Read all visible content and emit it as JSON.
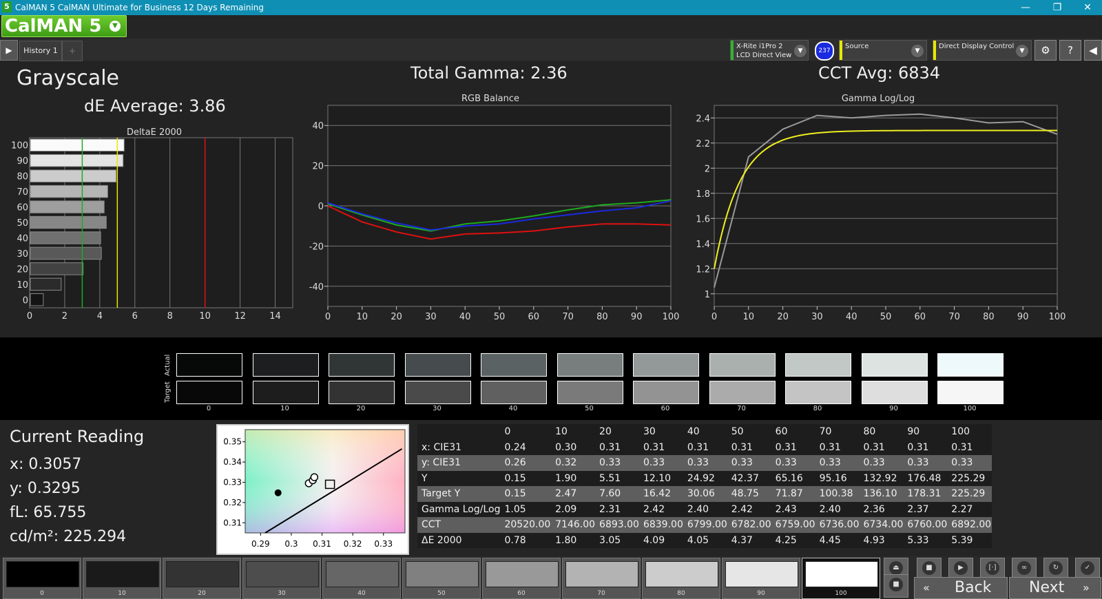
{
  "window": {
    "app_icon": "5",
    "title": "CalMAN 5 CalMAN Ultimate for Business 12 Days Remaining",
    "minimize_icon": "minimize-icon",
    "maximize_icon": "maximize-icon",
    "close_icon": "close-icon"
  },
  "logo": {
    "text": "CalMAN 5",
    "arrow": "chevron-down-icon"
  },
  "tabs": {
    "active": "History 1",
    "add": "+"
  },
  "devices": {
    "meter": {
      "line1": "X-Rite i1Pro 2",
      "line2": "LCD Direct View",
      "badge": "237",
      "color": "#2fb52f"
    },
    "source": {
      "label": "Source",
      "color": "#e8e800"
    },
    "display": {
      "label": "Direct Display Control",
      "color": "#e8e800"
    }
  },
  "header": {
    "page_title": "Grayscale",
    "de_average": "dE Average: 3.86",
    "total_gamma": "Total Gamma: 2.36",
    "cct_avg": "CCT Avg: 6834"
  },
  "chart_data": [
    {
      "type": "bar",
      "title": "DeltaE 2000",
      "orientation": "horizontal",
      "categories": [
        "100",
        "90",
        "80",
        "70",
        "60",
        "50",
        "40",
        "30",
        "20",
        "10",
        "0"
      ],
      "values": [
        5.39,
        5.33,
        4.93,
        4.45,
        4.25,
        4.37,
        4.05,
        4.09,
        3.05,
        1.8,
        0.78
      ],
      "xlim": [
        0,
        15
      ],
      "xticks": [
        "0",
        "2",
        "4",
        "6",
        "8",
        "10",
        "12",
        "14"
      ],
      "reference_lines": [
        {
          "x": 3,
          "color": "#1faa1f"
        },
        {
          "x": 5,
          "color": "#e8e800"
        },
        {
          "x": 10,
          "color": "#e01010"
        }
      ]
    },
    {
      "type": "line",
      "title": "RGB Balance",
      "x": [
        0,
        10,
        20,
        30,
        40,
        50,
        60,
        70,
        80,
        90,
        100
      ],
      "ylim": [
        -50,
        50
      ],
      "yticks": [
        "40",
        "20",
        "0",
        "-20",
        "-40"
      ],
      "xticks": [
        "0",
        "10",
        "20",
        "30",
        "40",
        "50",
        "60",
        "70",
        "80",
        "90",
        "100"
      ],
      "series": [
        {
          "color": "#e01010",
          "values": [
            0,
            -8,
            -13,
            -16.5,
            -14,
            -13.5,
            -12.5,
            -10.5,
            -9,
            -9,
            -9.5
          ]
        },
        {
          "color": "#1faa1f",
          "values": [
            1,
            -4.5,
            -9.5,
            -12.5,
            -9,
            -7.5,
            -5,
            -2,
            0.5,
            1.5,
            3
          ]
        },
        {
          "color": "#1a2ae0",
          "values": [
            1.5,
            -4,
            -8.5,
            -12,
            -10,
            -9,
            -6.5,
            -4.5,
            -2.5,
            -1,
            2.5
          ]
        }
      ]
    },
    {
      "type": "line",
      "title": "Gamma Log/Log",
      "x": [
        0,
        10,
        20,
        30,
        40,
        50,
        60,
        70,
        80,
        90,
        100
      ],
      "ylim": [
        0.9,
        2.5
      ],
      "yticks": [
        "2.4",
        "2.2",
        "2",
        "1.8",
        "1.6",
        "1.4",
        "1.2",
        "1"
      ],
      "xticks": [
        "0",
        "10",
        "20",
        "30",
        "40",
        "50",
        "60",
        "70",
        "80",
        "90",
        "100"
      ],
      "series": [
        {
          "color": "#9a9a9a",
          "values": [
            1.05,
            2.09,
            2.31,
            2.42,
            2.4,
            2.42,
            2.43,
            2.4,
            2.36,
            2.37,
            2.27
          ]
        },
        {
          "color": "#f0f020",
          "target_gamma": 2.3
        }
      ]
    },
    {
      "type": "scatter",
      "title": "",
      "xlim": [
        0.285,
        0.337
      ],
      "ylim": [
        0.305,
        0.356
      ],
      "xticks": [
        "0.29",
        "0.3",
        "0.31",
        "0.32",
        "0.33"
      ],
      "yticks": [
        "0.35",
        "0.34",
        "0.33",
        "0.32",
        "0.31"
      ],
      "points": [
        {
          "x": 0.2957,
          "y": 0.3248,
          "style": "filled"
        },
        {
          "x": 0.3057,
          "y": 0.3295,
          "style": "ring"
        },
        {
          "x": 0.307,
          "y": 0.331,
          "style": "ring"
        },
        {
          "x": 0.3075,
          "y": 0.3325,
          "style": "ring"
        }
      ],
      "target": {
        "x": 0.3127,
        "y": 0.329
      }
    }
  ],
  "swatches": {
    "actual_label": "Actual",
    "target_label": "Target",
    "steps": [
      "0",
      "10",
      "20",
      "30",
      "40",
      "50",
      "60",
      "70",
      "80",
      "90",
      "100"
    ],
    "actual_colors": [
      "#070808",
      "#1c1e1f",
      "#303536",
      "#464c4d",
      "#5b6263",
      "#787d7e",
      "#939998",
      "#a9b0ae",
      "#c2c8c6",
      "#dde3e1",
      "#eef9fb"
    ],
    "target_colors": [
      "#080808",
      "#1d1d1d",
      "#333333",
      "#4a4a4a",
      "#606060",
      "#7a7a7a",
      "#939393",
      "#ababab",
      "#c4c4c4",
      "#dedede",
      "#f6f6f6"
    ]
  },
  "current_reading": {
    "title": "Current Reading",
    "x": "x: 0.3057",
    "y": "y: 0.3295",
    "fl": "fL: 65.755",
    "cdm2": "cd/m²: 225.294"
  },
  "table": {
    "headers": [
      "",
      "0",
      "10",
      "20",
      "30",
      "40",
      "50",
      "60",
      "70",
      "80",
      "90",
      "100"
    ],
    "rows": [
      [
        "x: CIE31",
        "0.24",
        "0.30",
        "0.31",
        "0.31",
        "0.31",
        "0.31",
        "0.31",
        "0.31",
        "0.31",
        "0.31",
        "0.31"
      ],
      [
        "y: CIE31",
        "0.26",
        "0.32",
        "0.33",
        "0.33",
        "0.33",
        "0.33",
        "0.33",
        "0.33",
        "0.33",
        "0.33",
        "0.33"
      ],
      [
        "Y",
        "0.15",
        "1.90",
        "5.51",
        "12.10",
        "24.92",
        "42.37",
        "65.16",
        "95.16",
        "132.92",
        "176.48",
        "225.29"
      ],
      [
        "Target Y",
        "0.15",
        "2.47",
        "7.60",
        "16.42",
        "30.06",
        "48.75",
        "71.87",
        "100.38",
        "136.10",
        "178.31",
        "225.29"
      ],
      [
        "Gamma Log/Log",
        "1.05",
        "2.09",
        "2.31",
        "2.42",
        "2.40",
        "2.42",
        "2.43",
        "2.40",
        "2.36",
        "2.37",
        "2.27"
      ],
      [
        "CCT",
        "20520.00",
        "7146.00",
        "6893.00",
        "6839.00",
        "6799.00",
        "6782.00",
        "6759.00",
        "6736.00",
        "6734.00",
        "6760.00",
        "6892.00"
      ],
      [
        "ΔE 2000",
        "0.78",
        "1.80",
        "3.05",
        "4.09",
        "4.05",
        "4.37",
        "4.25",
        "4.45",
        "4.93",
        "5.33",
        "5.39"
      ]
    ]
  },
  "bottom": {
    "tiles": [
      {
        "label": "0",
        "color": "#000000"
      },
      {
        "label": "10",
        "color": "#1a1a1a"
      },
      {
        "label": "20",
        "color": "#333333"
      },
      {
        "label": "30",
        "color": "#4d4d4d"
      },
      {
        "label": "40",
        "color": "#666666"
      },
      {
        "label": "50",
        "color": "#808080"
      },
      {
        "label": "60",
        "color": "#999999"
      },
      {
        "label": "70",
        "color": "#b3b3b3"
      },
      {
        "label": "80",
        "color": "#cccccc"
      },
      {
        "label": "90",
        "color": "#e6e6e6"
      },
      {
        "label": "100",
        "color": "#ffffff"
      }
    ],
    "active_tile": "100",
    "back": "Back",
    "next": "Next",
    "controls": [
      "eject-icon",
      "stop-icon",
      "play-icon",
      "measure-frame-icon",
      "loop-icon",
      "refresh-icon",
      "check-icon",
      "record-stop-icon"
    ]
  }
}
